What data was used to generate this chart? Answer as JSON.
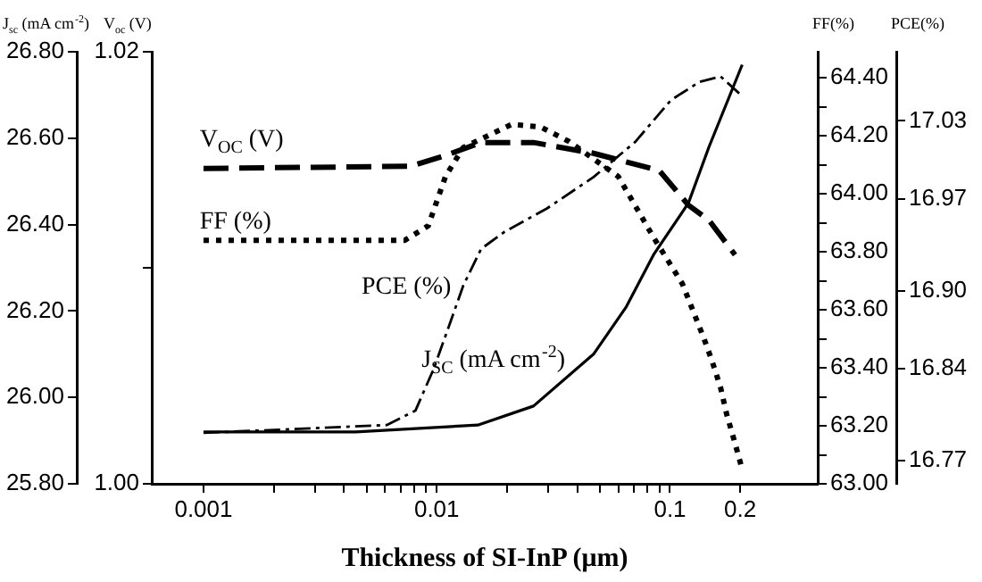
{
  "chart_data": [
    {
      "type": "line",
      "xlabel": "Thickness of SI-InP (μm)",
      "ylabel": "J$_{sc}$ (mA cm$^{-2}$)",
      "y2label": "FF(%)",
      "y3label": "PCE(%)",
      "log": "x",
      "grid": false,
      "legend": false,
      "marker": "none",
      "xlim": [
        0.0006,
        0.43
      ],
      "xticks": [
        0.001,
        {
          "value": 0.002,
          "label": null
        },
        {
          "value": 0.003,
          "label": null
        },
        {
          "value": 0.004,
          "label": null
        },
        {
          "value": 0.005,
          "label": null
        },
        {
          "value": 0.006,
          "label": null
        },
        {
          "value": 0.007,
          "label": null
        },
        {
          "value": 0.008,
          "label": null
        },
        {
          "value": 0.009,
          "label": null
        },
        0.01,
        {
          "value": 0.02,
          "label": null
        },
        {
          "value": 0.03,
          "label": null
        },
        {
          "value": 0.04,
          "label": null
        },
        {
          "value": 0.05,
          "label": null
        },
        {
          "value": 0.06,
          "label": null
        },
        {
          "value": 0.07,
          "label": null
        },
        {
          "value": 0.08,
          "label": null
        },
        {
          "value": 0.09,
          "label": null
        },
        0.1,
        0.2
      ],
      "ylim": [
        25.8,
        26.8
      ],
      "yticks": [
        {
          "value": 25.8,
          "label": "25.80"
        },
        {
          "value": 26.0,
          "label": "26.00"
        },
        {
          "value": 26.2,
          "label": "26.20"
        },
        {
          "value": 26.4,
          "label": "26.40"
        },
        {
          "value": 26.6,
          "label": "26.60"
        },
        {
          "value": 26.8,
          "label": "26.80"
        }
      ],
      "y2lim": [
        63.0,
        64.49
      ],
      "y2ticks": [
        {
          "value": 63.0,
          "label": "63.00"
        },
        {
          "value": 63.1,
          "label": null
        },
        {
          "value": 63.2,
          "label": "63.20"
        },
        {
          "value": 63.3,
          "label": null
        },
        {
          "value": 63.4,
          "label": "63.40"
        },
        {
          "value": 63.5,
          "label": null
        },
        {
          "value": 63.6,
          "label": "63.60"
        },
        {
          "value": 63.7,
          "label": null
        },
        {
          "value": 63.8,
          "label": "63.80"
        },
        {
          "value": 63.9,
          "label": null
        },
        {
          "value": 64.0,
          "label": "64.00"
        },
        {
          "value": 64.1,
          "label": null
        },
        {
          "value": 64.2,
          "label": "64.20"
        },
        {
          "value": 64.3,
          "label": null
        },
        {
          "value": 64.4,
          "label": "64.40"
        }
      ],
      "y3lim": [
        16.752,
        17.083
      ],
      "y3ticks": [
        16.77,
        16.84,
        {
          "value": 16.9,
          "label": "16.90"
        },
        16.97,
        17.03
      ],
      "series": [
        {
          "name": "FF (%)",
          "color": "#000000",
          "axis": "y2",
          "line_style": "dotted",
          "x": [
            0.001,
            0.0073,
            0.0092,
            0.0109,
            0.013,
            0.021,
            0.028,
            0.037,
            0.06,
            0.085,
            0.113,
            0.14,
            0.152,
            0.165,
            0.175,
            0.19,
            0.204
          ],
          "values": [
            63.84,
            63.84,
            63.89,
            64.06,
            64.16,
            64.24,
            64.23,
            64.18,
            64.06,
            63.85,
            63.69,
            63.5,
            63.42,
            63.33,
            63.24,
            63.14,
            63.05
          ]
        },
        {
          "name": "PCE (%)",
          "color": "#000000",
          "axis": "y3",
          "line_style": "dashdot",
          "x": [
            0.001,
            0.0061,
            0.0081,
            0.0097,
            0.0115,
            0.013,
            0.0155,
            0.0195,
            0.0297,
            0.047,
            0.071,
            0.101,
            0.134,
            0.165,
            0.204
          ],
          "values": [
            16.791,
            16.797,
            16.808,
            16.84,
            16.877,
            16.904,
            16.932,
            16.945,
            16.963,
            16.987,
            17.014,
            17.046,
            17.06,
            17.064,
            17.049
          ]
        },
        {
          "name": "J$_{SC}$ (mA cm$^{-2}$)",
          "color": "#000000",
          "line_style": "solid",
          "x": [
            0.001,
            0.0045,
            0.015,
            0.026,
            0.047,
            0.065,
            0.085,
            0.12,
            0.147,
            0.204
          ],
          "values": [
            25.92,
            25.92,
            25.936,
            25.98,
            26.1,
            26.21,
            26.33,
            26.45,
            26.58,
            26.77
          ]
        }
      ]
    },
    {
      "type": "line",
      "ylabel": "V$_{oc}$ (V)",
      "log": "x",
      "grid": false,
      "legend": false,
      "marker": "none",
      "tick_labels": "y",
      "xlim": [
        0.0006,
        0.43
      ],
      "ylim": [
        1.0,
        1.02
      ],
      "yticks": [
        {
          "value": 1.0,
          "label": "1.00"
        },
        {
          "value": 1.01,
          "label": null
        },
        {
          "value": 1.02,
          "label": "1.02"
        }
      ],
      "series": [
        {
          "name": "V$_{OC}$ (V)",
          "color": "#000000",
          "line_style": "dashed",
          "x": [
            0.001,
            0.0077,
            0.0109,
            0.0155,
            0.026,
            0.047,
            0.09,
            0.12,
            0.147,
            0.19
          ],
          "values": [
            1.0146,
            1.0147,
            1.0152,
            1.0158,
            1.0158,
            1.0153,
            1.0145,
            1.0129,
            1.0122,
            1.0106
          ]
        }
      ]
    }
  ]
}
